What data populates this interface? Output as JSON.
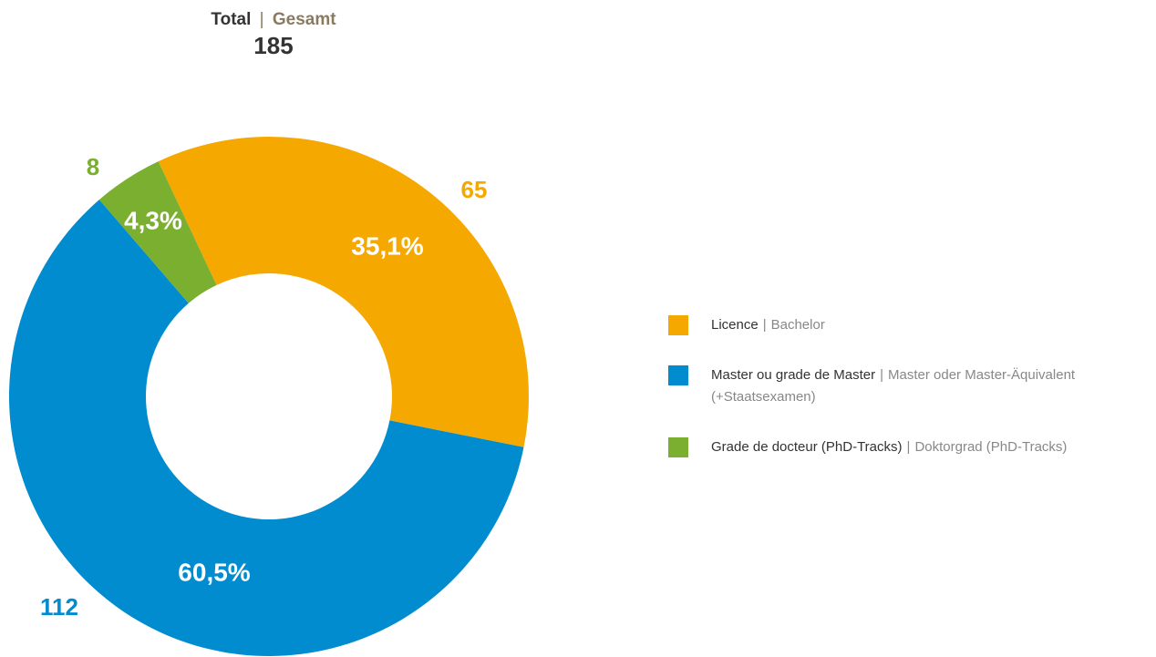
{
  "chart_data": {
    "type": "donut",
    "title": {
      "fr": "Total",
      "separator": "|",
      "de": "Gesamt"
    },
    "total": 185,
    "categories": [
      {
        "fr": "Licence",
        "de": "Bachelor"
      },
      {
        "fr": "Master ou grade de Master",
        "de": "Master oder Master-Äquivalent",
        "de_more": "(+Staatsexamen)"
      },
      {
        "fr": "Grade de docteur (PhD-Tracks)",
        "de": "Doktorgrad (PhD-Tracks)"
      }
    ],
    "separator": "|",
    "values": [
      65,
      112,
      8
    ],
    "shares": [
      35.1,
      60.5,
      4.3
    ],
    "share_labels": [
      "35,1%",
      "60,5%",
      "4,3%"
    ],
    "colors": [
      "#f5a800",
      "#008ccf",
      "#7aaf2f"
    ]
  }
}
